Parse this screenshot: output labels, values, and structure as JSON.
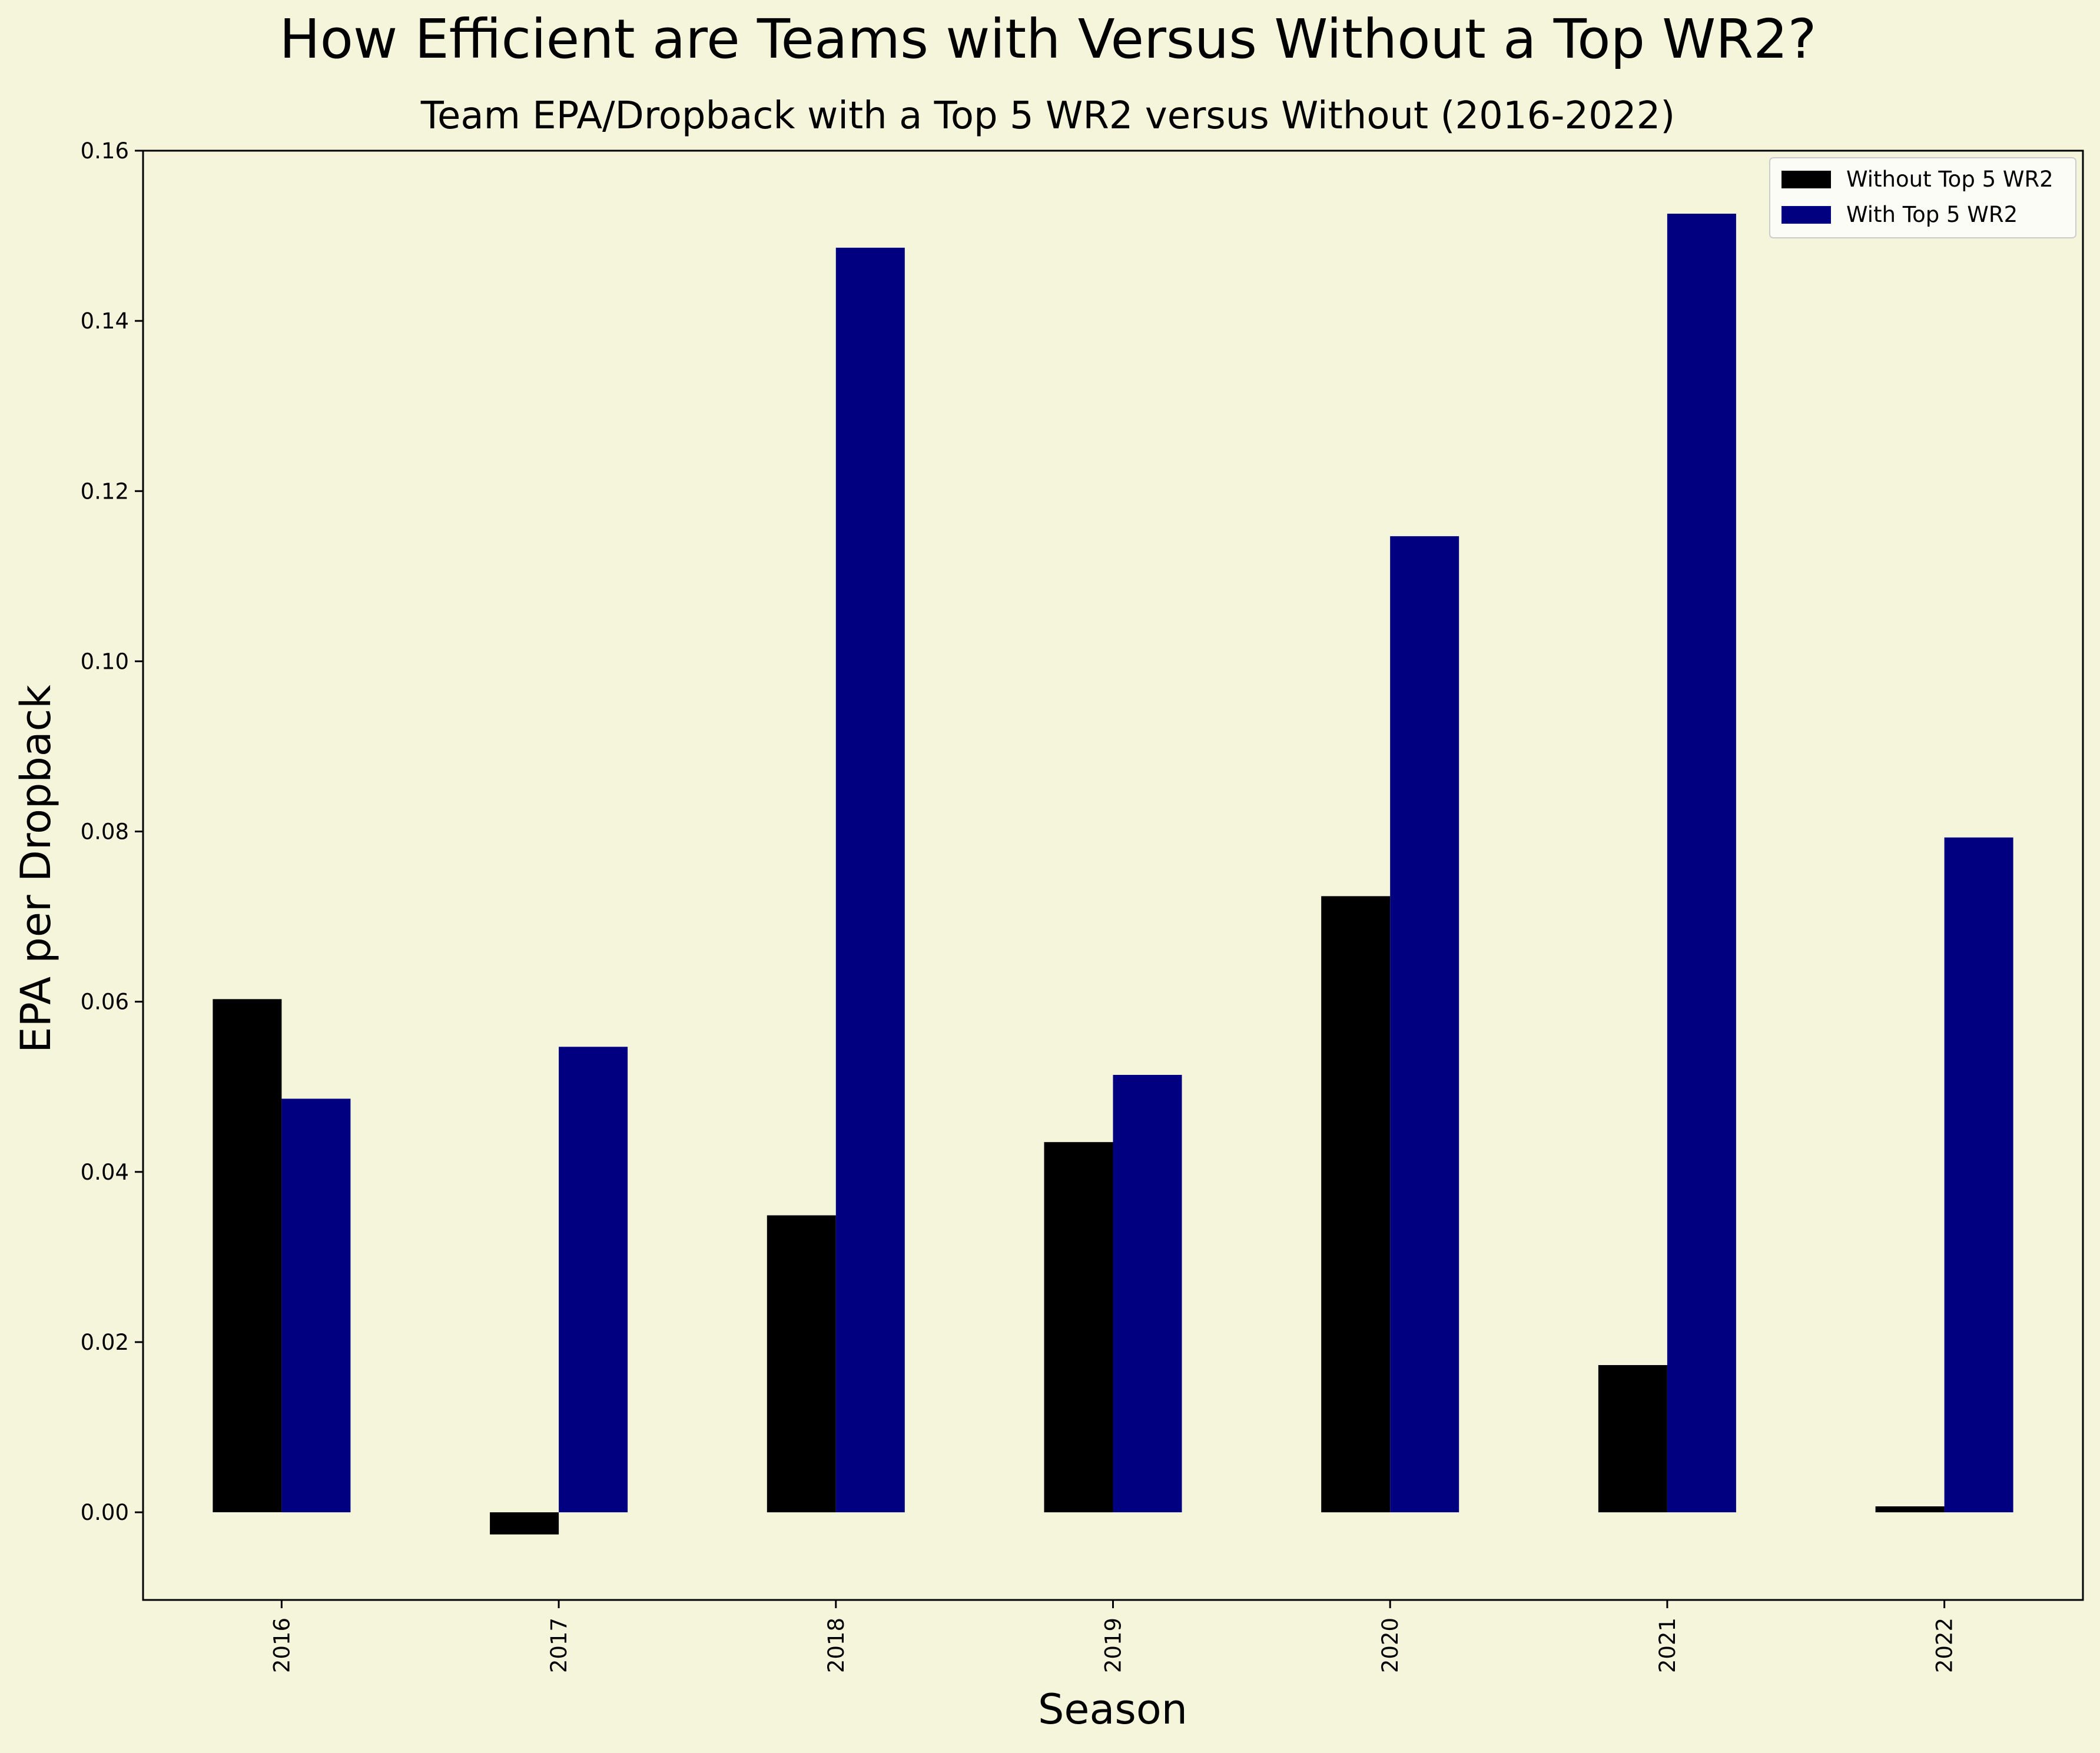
{
  "chart_data": {
    "type": "bar",
    "title": "How Efficient are Teams with Versus Without a Top WR2?",
    "subtitle": "Team EPA/Dropback with a Top 5 WR2 versus Without (2016-2022)",
    "xlabel": "Season",
    "ylabel": "EPA per Dropback",
    "categories": [
      "2016",
      "2017",
      "2018",
      "2019",
      "2020",
      "2021",
      "2022"
    ],
    "series": [
      {
        "name": "Without Top 5 WR2",
        "color": "#000000",
        "values": [
          0.0603,
          -0.0026,
          0.0349,
          0.0435,
          0.0724,
          0.0173,
          0.0007
        ]
      },
      {
        "name": "With Top 5 WR2",
        "color": "#000080",
        "values": [
          0.0486,
          0.0547,
          0.1486,
          0.0514,
          0.1147,
          0.1526,
          0.0793
        ]
      }
    ],
    "ylim": [
      -0.0103,
      0.16
    ],
    "yticks": [
      "0.00",
      "0.02",
      "0.04",
      "0.06",
      "0.08",
      "0.10",
      "0.12",
      "0.14",
      "0.16"
    ],
    "grid": false,
    "legend_position": "top-right",
    "background_color": "#f5f5dc"
  }
}
